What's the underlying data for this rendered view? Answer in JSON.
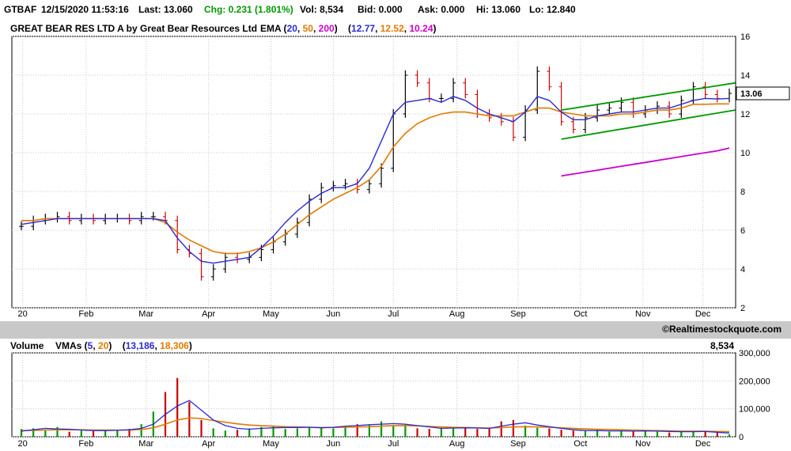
{
  "quote": {
    "symbol": "GTBAF",
    "datetime": "12/15/2020 11:53:16",
    "last": "Last: 13.060",
    "chg": "Chg: 0.231 (1.801%)",
    "vol": "Vol: 8,534",
    "bid": "Bid: 0.000",
    "ask": "Ask: 0.000",
    "hi": "Hi: 13.060",
    "lo": "Lo: 12.840"
  },
  "header": {
    "title": "GREAT BEAR RES LTD A by Great Bear Resources Ltd",
    "ema_label": "EMA (",
    "ema_20": "20",
    "ema_50": "50",
    "ema_200": "200",
    "ema_close": ")",
    "ema_open": "(",
    "ema_val_20": "12.77",
    "ema_val_50": "12.52",
    "ema_val_200": "10.24",
    "ema_val_close": ")",
    "comma": ","
  },
  "copyright": "©Realtimestockquote.com",
  "volume_header": {
    "label": "Volume",
    "vmas_label": "VMAs (",
    "vma_5": "5",
    "vma_20": "20",
    "vma_close": ")",
    "vma_open": "(",
    "vma_val_5": "13,186",
    "vma_val_20": "18,306",
    "vma_val_close": ")",
    "comma": ",",
    "current": "8,534"
  },
  "price_tag": "13.06",
  "colors": {
    "ema20": "#2a2ad6",
    "ema50": "#e07a00",
    "ema200": "#cc00cc",
    "channel": "#009900",
    "up_bar": "#000000",
    "down_bar": "#cc0000",
    "vol_up": "#009900",
    "vol_down": "#cc0000",
    "grid": "#c8c8c8",
    "separator": "#c8c8c8"
  },
  "chart_data": [
    {
      "type": "line",
      "title": "GREAT BEAR RES LTD A by Great Bear Resources Ltd",
      "xlabel": "",
      "ylabel": "",
      "ylim": [
        2,
        16
      ],
      "yticks": [
        "2",
        "4",
        "6",
        "8",
        "10",
        "12",
        "14",
        "16"
      ],
      "month_labels": [
        "20",
        "Feb",
        "Mar",
        "Apr",
        "May",
        "Jun",
        "Jul",
        "Aug",
        "Sep",
        "Oct",
        "Nov",
        "Dec"
      ],
      "month_positions": [
        0.11,
        5.4,
        10.4,
        15.6,
        20.8,
        26.0,
        31.0,
        36.3,
        41.4,
        46.6,
        51.8,
        56.8
      ],
      "grid": true,
      "weeks": 60,
      "close": [
        6.2,
        6.5,
        6.6,
        6.7,
        6.5,
        6.6,
        6.5,
        6.6,
        6.6,
        6.5,
        6.7,
        6.7,
        6.5,
        5.0,
        4.8,
        3.6,
        4.0,
        4.6,
        4.5,
        4.6,
        5.0,
        5.4,
        5.8,
        6.4,
        7.6,
        8.2,
        8.3,
        8.4,
        8.1,
        8.4,
        9.2,
        12.0,
        14.0,
        13.6,
        12.8,
        12.8,
        13.6,
        13.0,
        12.0,
        11.8,
        11.6,
        10.8,
        12.2,
        14.2,
        13.4,
        11.6,
        11.2,
        11.8,
        12.2,
        12.3,
        12.6,
        12.0,
        12.2,
        12.4,
        12.0,
        12.7,
        13.4,
        13.0,
        12.8,
        13.06
      ],
      "ema20": [
        6.3,
        6.4,
        6.5,
        6.6,
        6.6,
        6.6,
        6.6,
        6.6,
        6.6,
        6.6,
        6.6,
        6.6,
        6.5,
        5.6,
        4.9,
        4.4,
        4.3,
        4.4,
        4.5,
        4.6,
        5.1,
        5.7,
        6.4,
        7.0,
        7.5,
        7.9,
        8.2,
        8.2,
        8.4,
        9.2,
        10.6,
        12.0,
        12.6,
        12.7,
        12.8,
        12.6,
        12.9,
        12.7,
        12.3,
        12.0,
        11.8,
        11.6,
        12.1,
        12.9,
        12.7,
        12.1,
        11.7,
        11.7,
        11.9,
        12.0,
        12.1,
        12.1,
        12.2,
        12.3,
        12.3,
        12.5,
        12.7,
        12.8,
        12.77,
        12.8
      ],
      "ema50": [
        6.5,
        6.5,
        6.6,
        6.6,
        6.6,
        6.6,
        6.6,
        6.6,
        6.6,
        6.6,
        6.6,
        6.6,
        6.4,
        5.9,
        5.5,
        5.2,
        4.9,
        4.8,
        4.8,
        4.9,
        5.1,
        5.4,
        5.8,
        6.3,
        6.8,
        7.2,
        7.6,
        7.9,
        8.2,
        8.6,
        9.3,
        10.3,
        11.0,
        11.5,
        11.8,
        12.0,
        12.1,
        12.1,
        12.0,
        11.9,
        11.9,
        11.9,
        12.1,
        12.3,
        12.3,
        12.1,
        12.0,
        11.9,
        11.9,
        11.9,
        12.0,
        12.0,
        12.1,
        12.2,
        12.2,
        12.3,
        12.5,
        12.5,
        12.52,
        12.52
      ],
      "ema200_from_week": 45,
      "ema200": [
        8.8,
        8.9,
        9.0,
        9.1,
        9.2,
        9.3,
        9.4,
        9.5,
        9.6,
        9.7,
        9.8,
        9.9,
        10.0,
        10.1,
        10.24
      ],
      "channel_upper": {
        "from": [
          45,
          12.2
        ],
        "to": [
          59.5,
          13.6
        ]
      },
      "channel_lower": {
        "from": [
          45,
          10.7
        ],
        "to": [
          59.5,
          12.2
        ]
      }
    },
    {
      "type": "bar",
      "title": "Volume",
      "ylim": [
        0,
        300000
      ],
      "yticks": [
        "0",
        "100,000",
        "200,000",
        "300,000"
      ],
      "volume": [
        28000,
        30000,
        22000,
        35000,
        18000,
        22000,
        20000,
        25000,
        22000,
        28000,
        45000,
        90000,
        160000,
        210000,
        125000,
        60000,
        30000,
        22000,
        25000,
        30000,
        35000,
        40000,
        28000,
        30000,
        32000,
        35000,
        30000,
        38000,
        45000,
        42000,
        55000,
        40000,
        45000,
        30000,
        28000,
        32000,
        30000,
        35000,
        28000,
        30000,
        55000,
        60000,
        40000,
        32000,
        30000,
        25000,
        22000,
        20000,
        25000,
        18000,
        22000,
        20000,
        25000,
        18000,
        15000,
        22000,
        20000,
        20000,
        15000,
        8534
      ],
      "vma5": [
        20000,
        25000,
        30000,
        28000,
        27000,
        24000,
        22000,
        22000,
        23000,
        25000,
        30000,
        45000,
        80000,
        110000,
        130000,
        95000,
        60000,
        40000,
        30000,
        27000,
        30000,
        32000,
        33000,
        33000,
        34000,
        32000,
        34000,
        38000,
        40000,
        43000,
        45000,
        47000,
        45000,
        40000,
        35000,
        30000,
        31000,
        32000,
        31000,
        30000,
        38000,
        45000,
        50000,
        42000,
        36000,
        30000,
        25000,
        22000,
        22000,
        21000,
        21000,
        20000,
        21000,
        20000,
        19000,
        18000,
        18000,
        19000,
        16000,
        13186
      ],
      "vma20": [
        22000,
        23000,
        24000,
        25000,
        25000,
        25000,
        24000,
        24000,
        24000,
        24000,
        26000,
        32000,
        45000,
        60000,
        68000,
        65000,
        58000,
        52000,
        46000,
        42000,
        40000,
        38000,
        36000,
        35000,
        34000,
        33000,
        33000,
        34000,
        35000,
        36000,
        38000,
        40000,
        40000,
        39000,
        37000,
        35000,
        34000,
        33000,
        32000,
        31000,
        33000,
        35000,
        36000,
        35000,
        34000,
        32000,
        30000,
        28000,
        27000,
        26000,
        25000,
        24000,
        23000,
        22000,
        21000,
        20000,
        20000,
        19500,
        19000,
        18306
      ]
    }
  ]
}
